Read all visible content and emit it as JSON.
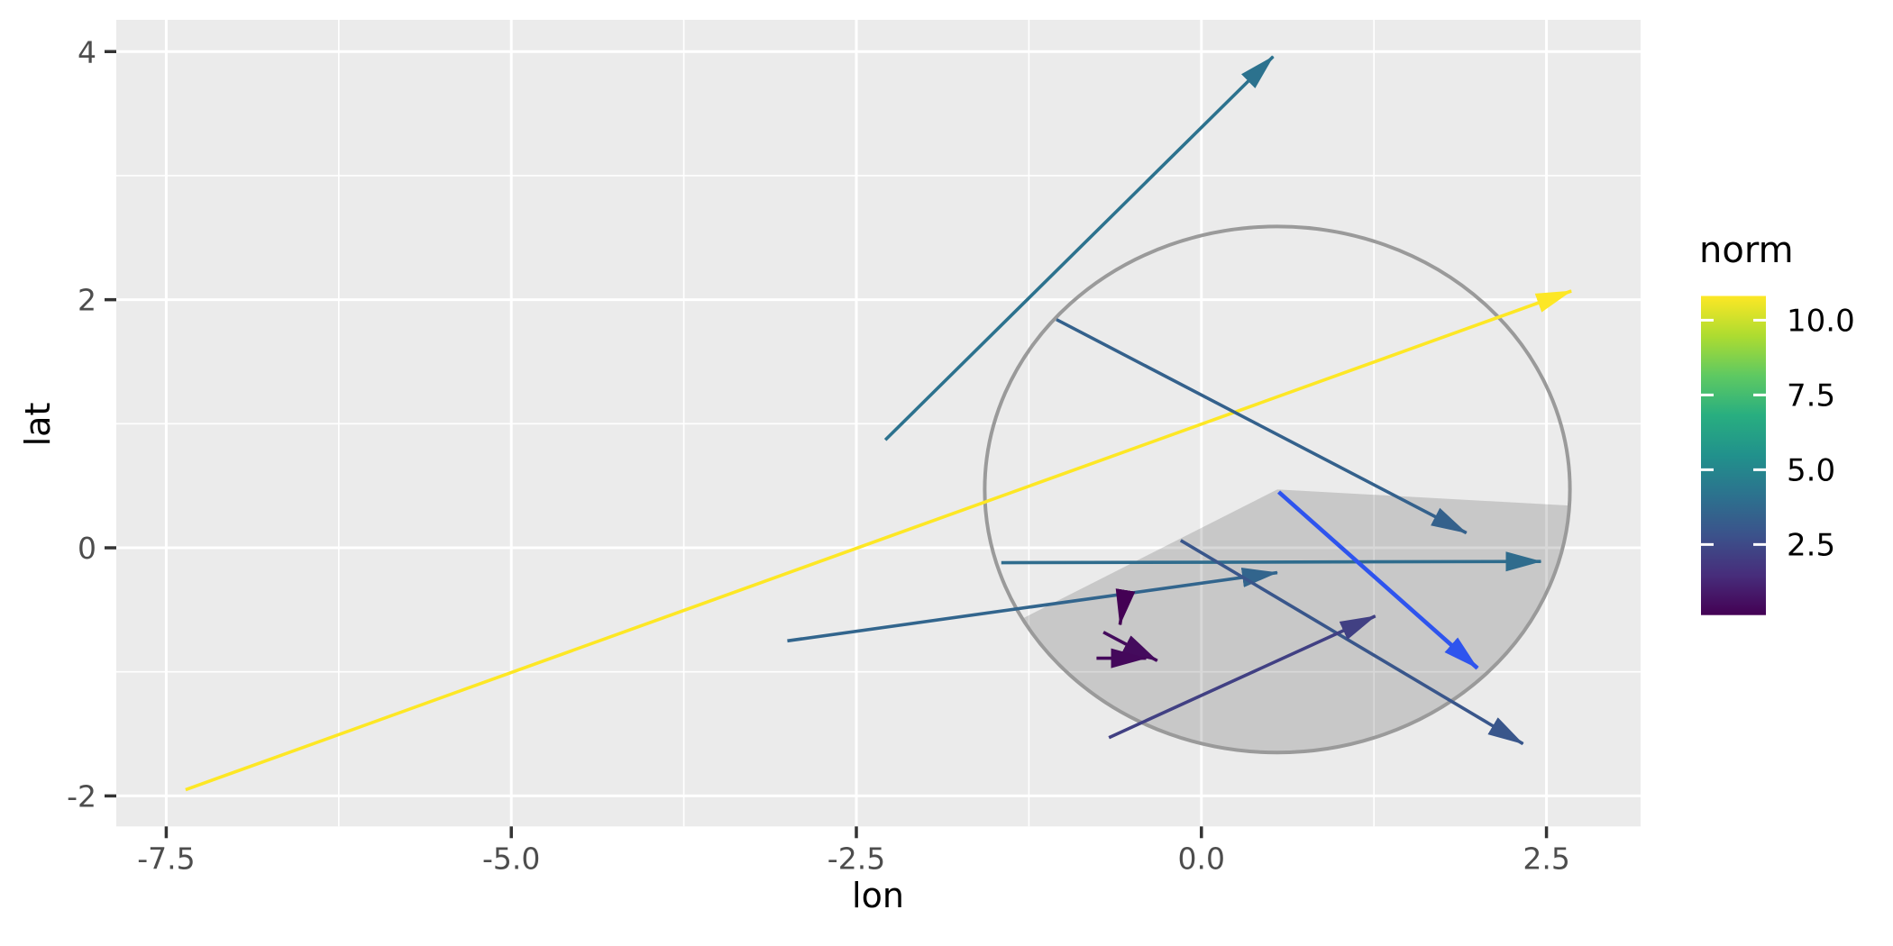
{
  "chart_data": {
    "type": "segment-vector-plot",
    "title": "",
    "xlabel": "lon",
    "ylabel": "lat",
    "x_axis": {
      "tick_labels": [
        "-7.5",
        "-5.0",
        "-2.5",
        "0.0",
        "2.5"
      ],
      "tick_values": [
        -7.5,
        -5.0,
        -2.5,
        0.0,
        2.5
      ],
      "minor_tick_values": [
        -6.25,
        -3.75,
        -1.25,
        1.25
      ],
      "range": [
        -7.862,
        3.182
      ]
    },
    "y_axis": {
      "tick_labels": [
        "4",
        "2",
        "0",
        "-2"
      ],
      "tick_values": [
        4,
        2,
        0,
        -2
      ],
      "minor_tick_values": [
        3,
        1,
        -1
      ],
      "range": [
        -2.246,
        4.256
      ]
    },
    "grid": "on",
    "panel_background": "#EBEBEB",
    "gridline_color": "#FFFFFF",
    "segments": [
      {
        "x": -7.36,
        "y": -1.95,
        "xend": 2.68,
        "yend": 2.07,
        "norm": 10.81,
        "color": "#FDE725"
      },
      {
        "x": -2.29,
        "y": 0.87,
        "xend": 0.52,
        "yend": 3.96,
        "norm": 4.18,
        "color": "#2C728E"
      },
      {
        "x": -1.05,
        "y": 1.84,
        "xend": 1.92,
        "yend": 0.12,
        "norm": 3.43,
        "color": "#34618C"
      },
      {
        "x": -1.45,
        "y": -0.12,
        "xend": 2.46,
        "yend": -0.11,
        "norm": 3.91,
        "color": "#2F6C8D"
      },
      {
        "x": -3.0,
        "y": -0.75,
        "xend": 0.55,
        "yend": -0.2,
        "norm": 3.59,
        "color": "#32658D"
      },
      {
        "x": -0.15,
        "y": 0.06,
        "xend": 2.33,
        "yend": -1.58,
        "norm": 2.97,
        "color": "#39568B"
      },
      {
        "x": -0.67,
        "y": -1.53,
        "xend": 1.26,
        "yend": -0.55,
        "norm": 2.16,
        "color": "#414083"
      },
      {
        "x": -0.71,
        "y": -0.68,
        "xend": -0.32,
        "yend": -0.91,
        "norm": 0.45,
        "color": "#440B5D"
      },
      {
        "x": -0.76,
        "y": -0.89,
        "xend": -0.4,
        "yend": -0.89,
        "norm": 0.36,
        "color": "#44085B"
      },
      {
        "x": -0.57,
        "y": -0.48,
        "xend": -0.59,
        "yend": -0.62,
        "norm": 0.14,
        "color": "#440154"
      }
    ],
    "highlight_segment": {
      "x": 0.56,
      "y": 0.45,
      "xend": 2.0,
      "yend": -0.97,
      "color": "#2E54EE",
      "note": "radius arrow drawn in plain blue, not mapped to norm scale"
    },
    "circle": {
      "cx": 0.55,
      "cy": 0.47,
      "r": 2.12,
      "stroke": "#9A9A9A"
    },
    "sector": {
      "cx": 0.55,
      "cy": 0.47,
      "r": 2.12,
      "start_deg": -3.5,
      "end_deg": -150.6,
      "fill": "#4D4D4D",
      "opacity": 0.22
    },
    "legend": {
      "title": "norm",
      "position": "right",
      "tick_labels": [
        "10.0",
        "7.5",
        "5.0",
        "2.5"
      ],
      "tick_values": [
        10.0,
        7.5,
        5.0,
        2.5
      ],
      "limits": [
        0.14,
        10.81
      ],
      "colormap": "viridis",
      "gradient_top_to_bottom": [
        {
          "offset": 0.0,
          "color": "#FDE725"
        },
        {
          "offset": 0.125,
          "color": "#ADDC30"
        },
        {
          "offset": 0.25,
          "color": "#5EC962"
        },
        {
          "offset": 0.375,
          "color": "#28AE80"
        },
        {
          "offset": 0.5,
          "color": "#21918C"
        },
        {
          "offset": 0.625,
          "color": "#2C728E"
        },
        {
          "offset": 0.75,
          "color": "#3B528B"
        },
        {
          "offset": 0.875,
          "color": "#472D7B"
        },
        {
          "offset": 1.0,
          "color": "#440154"
        }
      ]
    },
    "text_colors": {
      "axis_text": "#4D4D4D",
      "axis_title": "#000000",
      "tick_mark": "#333333"
    }
  }
}
